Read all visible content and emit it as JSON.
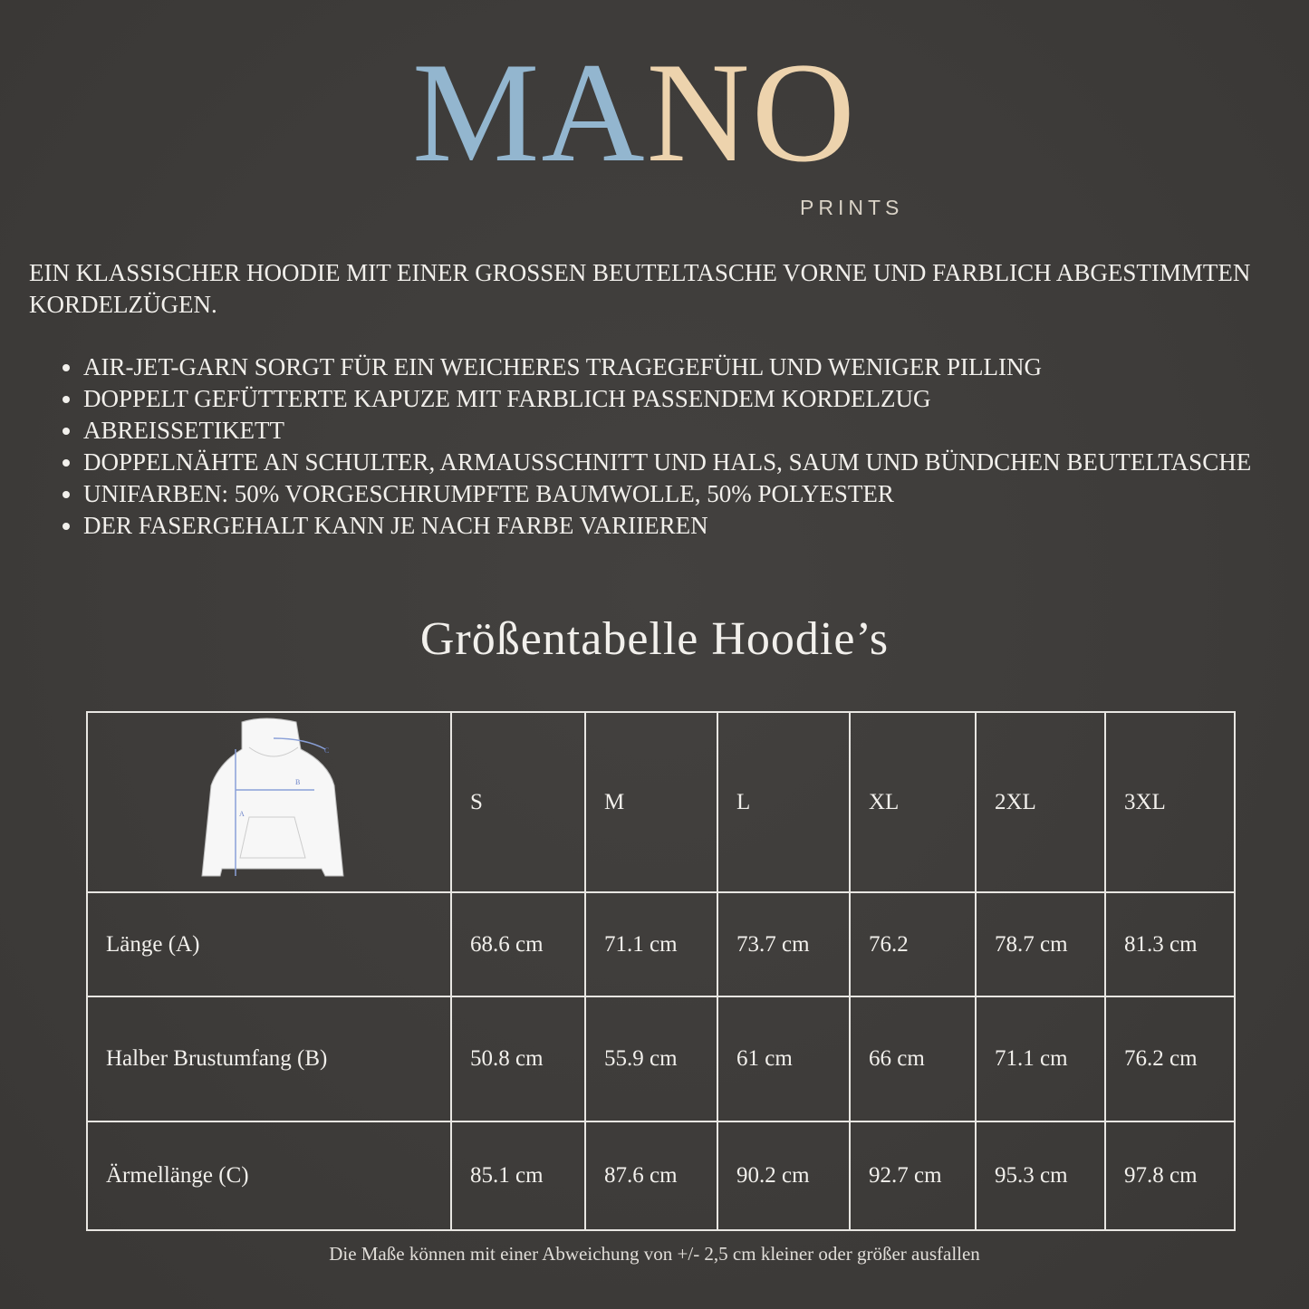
{
  "logo": {
    "main_left": "MA",
    "main_right": "NO",
    "sub": "PRINTS",
    "colors": {
      "blue": "#93b6cf",
      "cream": "#edd3ad"
    }
  },
  "intro": "EIN KLASSISCHER HOODIE MIT EINER GROSSEN BEUTELTASCHE VORNE UND FARBLICH ABGESTIMMTEN KORDELZÜGEN.",
  "features": [
    "AIR-JET-GARN SORGT FÜR EIN WEICHERES TRAGEGEFÜHL UND WENIGER PILLING",
    "DOPPELT GEFÜTTERTE KAPUZE MIT FARBLICH PASSENDEM KORDELZUG",
    "ABREISSETIKETT",
    "DOPPELNÄHTE AN SCHULTER, ARMAUSSCHNITT UND HALS, SAUM UND BÜNDCHEN BEUTELTASCHE",
    "UNIFARBEN: 50% VORGESCHRUMPFTE BAUMWOLLE, 50% POLYESTER",
    "DER FASERGEHALT KANN JE NACH FARBE VARIIEREN"
  ],
  "title": "Größentabelle Hoodie’s",
  "table": {
    "diagram_labels": {
      "a": "A",
      "b": "B",
      "c": "C"
    },
    "sizes": [
      "S",
      "M",
      "L",
      "XL",
      "2XL",
      "3XL"
    ],
    "rows": [
      {
        "label": "Länge (A)",
        "values": [
          "68.6 cm",
          "71.1 cm",
          "73.7 cm",
          "76.2",
          "78.7 cm",
          "81.3 cm"
        ]
      },
      {
        "label": "Halber Brustumfang (B)",
        "values": [
          "50.8 cm",
          "55.9 cm",
          "61 cm",
          "66 cm",
          "71.1 cm",
          "76.2 cm"
        ]
      },
      {
        "label": "Ärmellänge (C)",
        "values": [
          "85.1 cm",
          "87.6 cm",
          "90.2 cm",
          "92.7 cm",
          "95.3 cm",
          "97.8 cm"
        ]
      }
    ]
  },
  "footer": "Die Maße können mit einer Abweichung von +/- 2,5 cm kleiner oder größer ausfallen"
}
